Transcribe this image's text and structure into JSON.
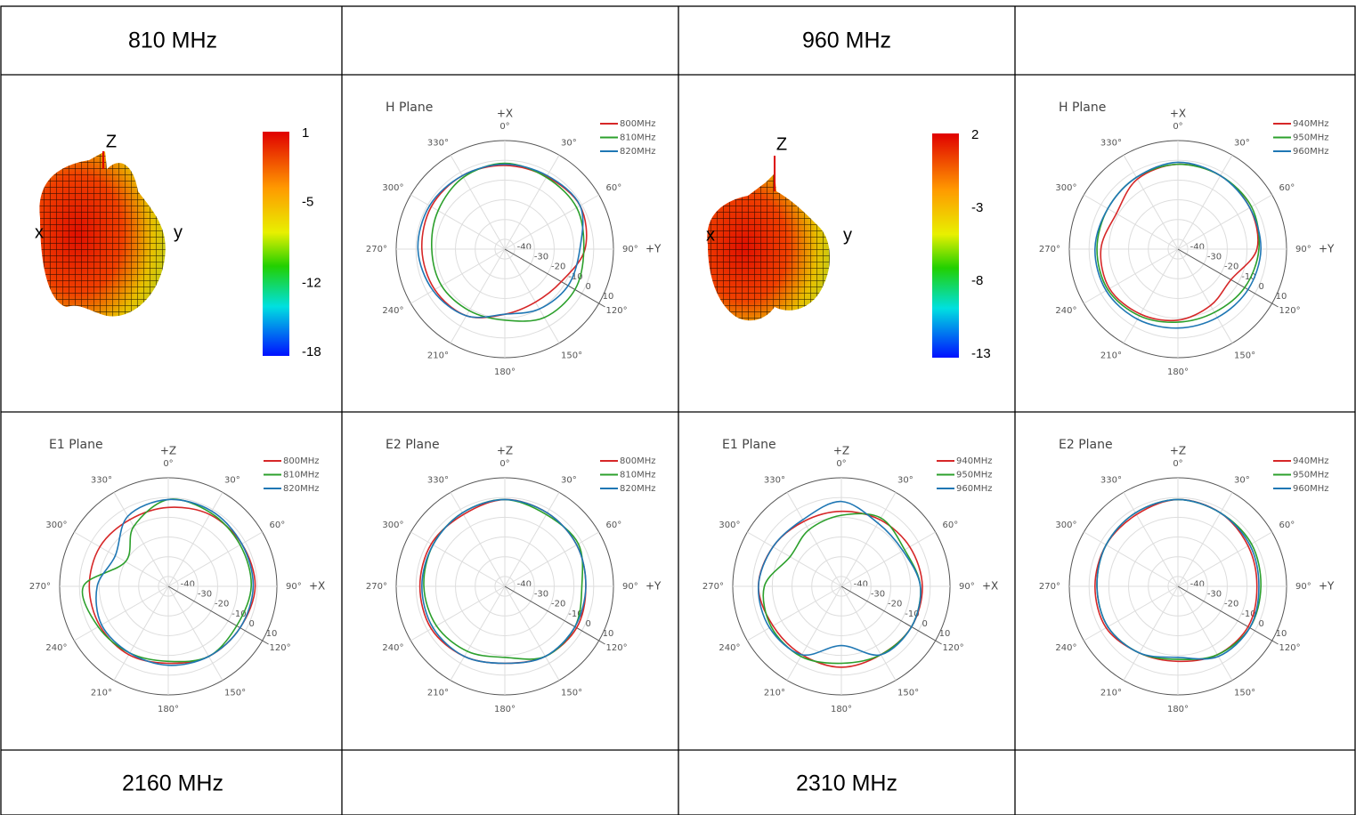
{
  "header": {
    "left": "810 MHz",
    "right": "960 MHz"
  },
  "footer": {
    "left": "2160 MHz",
    "right": "2310 MHz"
  },
  "patterns": [
    {
      "axes": [
        "Z",
        "x",
        "y"
      ],
      "colorbar_ticks": [
        1,
        -5,
        -12,
        -18
      ],
      "clim": [
        1,
        -18
      ]
    },
    {
      "axes": [
        "Z",
        "x",
        "y"
      ],
      "colorbar_ticks": [
        2,
        -3,
        -8,
        -13
      ],
      "clim": [
        2,
        -13
      ]
    }
  ],
  "chart_data": [
    {
      "type": "polar",
      "title": "H Plane",
      "axis_label_top": "+X",
      "axis_label_right": "+Y",
      "theta_ticks": [
        {
          "value": 0,
          "label": "0°"
        },
        {
          "value": 30,
          "label": "30°"
        },
        {
          "value": 60,
          "label": "60°"
        },
        {
          "value": 90,
          "label": "90°"
        },
        {
          "value": 120,
          "label": "120°"
        },
        {
          "value": 150,
          "label": "150°"
        },
        {
          "value": 180,
          "label": "180°"
        },
        {
          "value": 210,
          "label": "210°"
        },
        {
          "value": 240,
          "label": "240°"
        },
        {
          "value": 270,
          "label": "270°"
        },
        {
          "value": 300,
          "label": "300°"
        },
        {
          "value": 330,
          "label": "330°"
        }
      ],
      "rlim": [
        -45,
        10
      ],
      "rticks": [
        -40,
        -30,
        -20,
        -10,
        0,
        10
      ],
      "theta": [
        0,
        30,
        60,
        90,
        120,
        150,
        180,
        210,
        240,
        270,
        300,
        330
      ],
      "series": [
        {
          "name": "800MHz",
          "color": "#d62728",
          "values": [
            -2.6,
            -2.6,
            -1,
            -4.4,
            -12,
            -14,
            -12,
            -6,
            -4,
            -3,
            -2,
            -2
          ]
        },
        {
          "name": "810MHz",
          "color": "#2ca02c",
          "values": [
            -1.5,
            -3,
            -3,
            -5,
            -4,
            -5,
            -9,
            -9,
            -8,
            -8,
            -6,
            -3
          ]
        },
        {
          "name": "820MHz",
          "color": "#1f77b4",
          "values": [
            -2,
            -2,
            -1,
            -7,
            -8,
            -10,
            -12,
            -6,
            -3,
            -1,
            -1,
            -2
          ]
        }
      ]
    },
    {
      "type": "polar",
      "title": "H Plane",
      "axis_label_top": "+X",
      "axis_label_right": "+Y",
      "theta_ticks": [
        {
          "value": 0,
          "label": "0°"
        },
        {
          "value": 30,
          "label": "30°"
        },
        {
          "value": 60,
          "label": "60°"
        },
        {
          "value": 90,
          "label": "90°"
        },
        {
          "value": 120,
          "label": "120°"
        },
        {
          "value": 150,
          "label": "150°"
        },
        {
          "value": 180,
          "label": "180°"
        },
        {
          "value": 210,
          "label": "210°"
        },
        {
          "value": 240,
          "label": "240°"
        },
        {
          "value": 270,
          "label": "270°"
        },
        {
          "value": 300,
          "label": "300°"
        },
        {
          "value": 330,
          "label": "330°"
        }
      ],
      "rlim": [
        -45,
        10
      ],
      "rticks": [
        -40,
        -30,
        -20,
        -10,
        0,
        10
      ],
      "theta": [
        0,
        30,
        60,
        90,
        120,
        150,
        180,
        210,
        240,
        270,
        300,
        330
      ],
      "series": [
        {
          "name": "940MHz",
          "color": "#d62728",
          "values": [
            -2,
            -2,
            -3,
            -5,
            -14,
            -12,
            -9,
            -7,
            -5,
            -6,
            -9,
            -4
          ]
        },
        {
          "name": "950MHz",
          "color": "#2ca02c",
          "values": [
            -2,
            -2,
            -2,
            -4,
            -6,
            -8,
            -8,
            -6,
            -4,
            -4,
            -4,
            -3
          ]
        },
        {
          "name": "960MHz",
          "color": "#1f77b4",
          "values": [
            -1,
            -2,
            -3,
            -3,
            -4,
            -5,
            -5,
            -4,
            -3,
            -3,
            -4,
            -3
          ]
        }
      ]
    },
    {
      "type": "polar",
      "title": "E1 Plane",
      "axis_label_top": "+Z",
      "axis_label_right": "+X",
      "theta_ticks": [
        {
          "value": 0,
          "label": "0°"
        },
        {
          "value": 30,
          "label": "30°"
        },
        {
          "value": 60,
          "label": "60°"
        },
        {
          "value": 90,
          "label": "90°"
        },
        {
          "value": 120,
          "label": "120°"
        },
        {
          "value": 150,
          "label": "150°"
        },
        {
          "value": 180,
          "label": "180°"
        },
        {
          "value": 210,
          "label": "210°"
        },
        {
          "value": 240,
          "label": "240°"
        },
        {
          "value": 270,
          "label": "270°"
        },
        {
          "value": 300,
          "label": "300°"
        },
        {
          "value": 330,
          "label": "330°"
        }
      ],
      "rlim": [
        -45,
        10
      ],
      "rticks": [
        -40,
        -30,
        -20,
        -10,
        0,
        10
      ],
      "theta": [
        0,
        30,
        60,
        90,
        120,
        150,
        180,
        210,
        240,
        270,
        300,
        330
      ],
      "series": [
        {
          "name": "800MHz",
          "color": "#d62728",
          "values": [
            -5,
            -3,
            -2,
            -1,
            -3,
            -4,
            -6,
            -5,
            -5,
            -5,
            -5,
            -6
          ]
        },
        {
          "name": "810MHz",
          "color": "#2ca02c",
          "values": [
            -1,
            -2,
            -3,
            -3,
            -5,
            -4,
            -7,
            -6,
            -4,
            -2,
            -20,
            -10
          ]
        },
        {
          "name": "820MHz",
          "color": "#1f77b4",
          "values": [
            -1,
            -1,
            -2,
            -2,
            -3,
            -4,
            -5,
            -6,
            -6,
            -9,
            -14,
            -4
          ]
        }
      ]
    },
    {
      "type": "polar",
      "title": "E2 Plane",
      "axis_label_top": "+Z",
      "axis_label_right": "+Y",
      "theta_ticks": [
        {
          "value": 0,
          "label": "0°"
        },
        {
          "value": 30,
          "label": "30°"
        },
        {
          "value": 60,
          "label": "60°"
        },
        {
          "value": 90,
          "label": "90°"
        },
        {
          "value": 120,
          "label": "120°"
        },
        {
          "value": 150,
          "label": "150°"
        },
        {
          "value": 180,
          "label": "180°"
        },
        {
          "value": 210,
          "label": "210°"
        },
        {
          "value": 240,
          "label": "240°"
        },
        {
          "value": 270,
          "label": "270°"
        },
        {
          "value": 300,
          "label": "300°"
        },
        {
          "value": 330,
          "label": "330°"
        }
      ],
      "rlim": [
        -45,
        10
      ],
      "rticks": [
        -40,
        -30,
        -20,
        -10,
        0,
        10
      ],
      "theta": [
        0,
        30,
        60,
        90,
        120,
        150,
        180,
        210,
        240,
        270,
        300,
        330
      ],
      "series": [
        {
          "name": "800MHz",
          "color": "#d62728",
          "values": [
            -1,
            -2,
            -3,
            -4,
            -3,
            -4,
            -6,
            -4,
            -2,
            -2,
            -2,
            -3
          ]
        },
        {
          "name": "810MHz",
          "color": "#2ca02c",
          "values": [
            -1,
            -3,
            -2,
            -6,
            -4,
            -4,
            -9,
            -7,
            -5,
            -4,
            -3,
            -2
          ]
        },
        {
          "name": "820MHz",
          "color": "#1f77b4",
          "values": [
            -1,
            -2,
            -3,
            -4,
            -4,
            -4,
            -6,
            -4,
            -3,
            -3,
            -3,
            -2
          ]
        }
      ]
    },
    {
      "type": "polar",
      "title": "E1 Plane",
      "axis_label_top": "+Z",
      "axis_label_right": "+X",
      "theta_ticks": [
        {
          "value": 0,
          "label": "0°"
        },
        {
          "value": 30,
          "label": "30°"
        },
        {
          "value": 60,
          "label": "60°"
        },
        {
          "value": 90,
          "label": "90°"
        },
        {
          "value": 120,
          "label": "120°"
        },
        {
          "value": 150,
          "label": "150°"
        },
        {
          "value": 180,
          "label": "180°"
        },
        {
          "value": 210,
          "label": "210°"
        },
        {
          "value": 240,
          "label": "240°"
        },
        {
          "value": 270,
          "label": "270°"
        },
        {
          "value": 300,
          "label": "300°"
        },
        {
          "value": 330,
          "label": "330°"
        }
      ],
      "rlim": [
        -45,
        10
      ],
      "rticks": [
        -40,
        -30,
        -20,
        -10,
        0,
        10
      ],
      "theta": [
        0,
        30,
        60,
        90,
        120,
        150,
        180,
        210,
        240,
        270,
        300,
        330
      ],
      "series": [
        {
          "name": "940MHz",
          "color": "#d62728",
          "values": [
            -7,
            -6,
            -5,
            -4,
            -4,
            -5,
            -4,
            -5,
            -5,
            -3,
            -5,
            -7
          ]
        },
        {
          "name": "950MHz",
          "color": "#2ca02c",
          "values": [
            -9,
            -5,
            -8,
            -5,
            -4,
            -5,
            -6,
            -4,
            -4,
            -6,
            -15,
            -12
          ]
        },
        {
          "name": "960MHz",
          "color": "#1f77b4",
          "values": [
            -2,
            -8,
            -9,
            -5,
            -4,
            -5,
            -15,
            -5,
            -3,
            -3,
            -5,
            -6
          ]
        }
      ]
    },
    {
      "type": "polar",
      "title": "E2 Plane",
      "axis_label_top": "+Z",
      "axis_label_right": "+Y",
      "theta_ticks": [
        {
          "value": 0,
          "label": "0°"
        },
        {
          "value": 30,
          "label": "30°"
        },
        {
          "value": 60,
          "label": "60°"
        },
        {
          "value": 90,
          "label": "90°"
        },
        {
          "value": 120,
          "label": "120°"
        },
        {
          "value": 150,
          "label": "150°"
        },
        {
          "value": 180,
          "label": "180°"
        },
        {
          "value": 210,
          "label": "210°"
        },
        {
          "value": 240,
          "label": "240°"
        },
        {
          "value": 270,
          "label": "270°"
        },
        {
          "value": 300,
          "label": "300°"
        },
        {
          "value": 330,
          "label": "330°"
        }
      ],
      "rlim": [
        -45,
        10
      ],
      "rticks": [
        -40,
        -30,
        -20,
        -10,
        0,
        10
      ],
      "theta": [
        0,
        30,
        60,
        90,
        120,
        150,
        180,
        210,
        240,
        270,
        300,
        330
      ],
      "series": [
        {
          "name": "940MHz",
          "color": "#d62728",
          "values": [
            -1,
            -2,
            -4,
            -5,
            -4,
            -5,
            -7,
            -6,
            -3,
            -3,
            -3,
            -3
          ]
        },
        {
          "name": "950MHz",
          "color": "#2ca02c",
          "values": [
            -1,
            -2,
            -2,
            -3,
            -3,
            -5,
            -8,
            -6,
            -4,
            -4,
            -3,
            -2
          ]
        },
        {
          "name": "960MHz",
          "color": "#1f77b4",
          "values": [
            -1,
            -2,
            -3,
            -4,
            -3,
            -4,
            -9,
            -6,
            -4,
            -4,
            -3,
            -2
          ]
        }
      ]
    }
  ]
}
